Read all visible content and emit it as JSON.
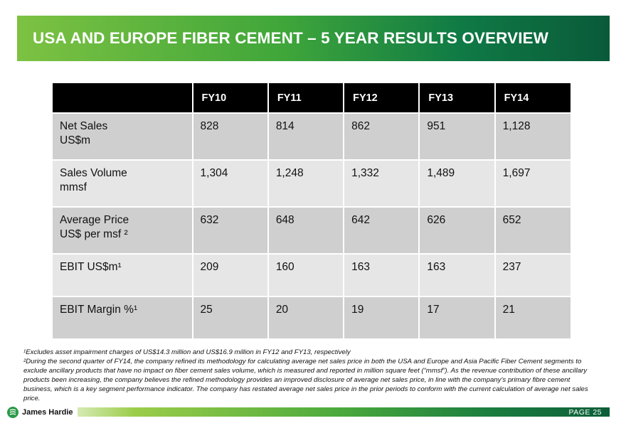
{
  "slide": {
    "title": "USA AND EUROPE FIBER CEMENT – 5 YEAR RESULTS OVERVIEW"
  },
  "table": {
    "columns": [
      "",
      "FY10",
      "FY11",
      "FY12",
      "FY13",
      "FY14"
    ],
    "rows": [
      {
        "label_line1": "Net Sales",
        "label_line2": "US$m",
        "values": [
          "828",
          "814",
          "862",
          "951",
          "1,128"
        ]
      },
      {
        "label_line1": "Sales Volume",
        "label_line2": "mmsf",
        "values": [
          "1,304",
          "1,248",
          "1,332",
          "1,489",
          "1,697"
        ]
      },
      {
        "label_line1": "Average Price",
        "label_line2": "US$ per msf ²",
        "values": [
          "632",
          "648",
          "642",
          "626",
          "652"
        ]
      },
      {
        "label_line1": "EBIT US$m¹",
        "label_line2": "",
        "values": [
          "209",
          "160",
          "163",
          "163",
          "237"
        ]
      },
      {
        "label_line1": "EBIT Margin %¹",
        "label_line2": "",
        "values": [
          "25",
          "20",
          "19",
          "17",
          "21"
        ]
      }
    ]
  },
  "footnotes": {
    "note1": "¹Excludes asset impairment charges of US$14.3 million and US$16.9 million in FY12 and FY13, respectively",
    "note2": "²During the second quarter of FY14, the company refined its methodology for calculating average net sales price in both the USA and Europe and Asia Pacific Fiber Cement segments to exclude ancillary products that have no impact on fiber cement sales volume, which is measured and reported in million square feet (“mmsf”). As the revenue contribution of these ancillary products  been increasing, the company believes the refined methodology provides an improved disclosure of average net sales price, in line with the company’s primary fibre cement business, which is a key segment performance indicator. The company has restated average net sales price in the prior periods to conform with the current calculation of average net sales price."
  },
  "footer": {
    "logo_text": "James Hardie",
    "logo_icon": "james-hardie-logo-icon",
    "page_label": "PAGE  25"
  },
  "colors": {
    "title_gradient_start": "#7dc242",
    "title_gradient_end": "#0a5a3a",
    "header_row": "#000000",
    "row_dark": "#cfcfcf",
    "row_light": "#e6e6e6"
  }
}
